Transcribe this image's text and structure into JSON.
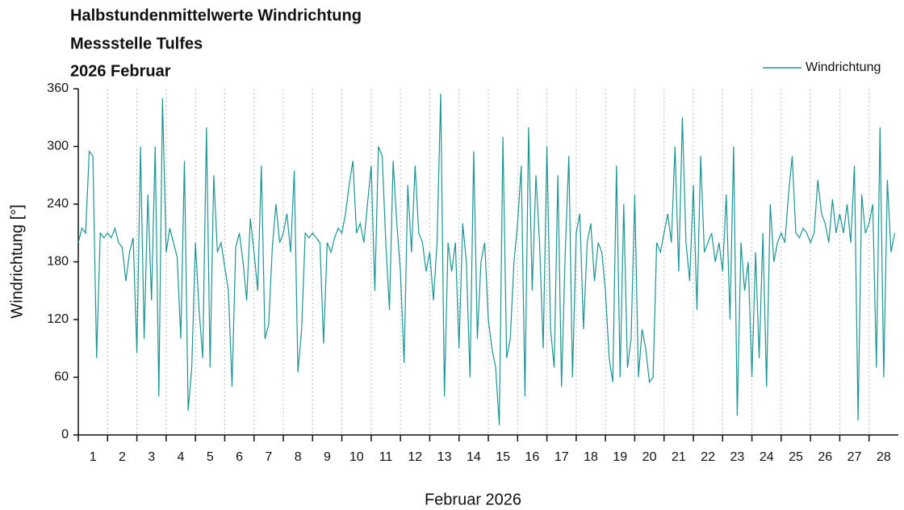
{
  "chart_data": {
    "type": "line",
    "title": [
      "Halbstundenmittelwerte Windrichtung",
      "Messstelle Tulfes",
      "2026 Februar"
    ],
    "xlabel": "Februar 2026",
    "ylabel": "Windrichtung [°]",
    "xlim": [
      1,
      29
    ],
    "xticks": [
      1,
      2,
      3,
      4,
      5,
      6,
      7,
      8,
      9,
      10,
      11,
      12,
      13,
      14,
      15,
      16,
      17,
      18,
      19,
      20,
      21,
      22,
      23,
      24,
      25,
      26,
      27,
      28
    ],
    "ylim": [
      0,
      360
    ],
    "yticks": [
      0,
      60,
      120,
      180,
      240,
      300,
      360
    ],
    "grid": true,
    "legend": "upper right",
    "x": [
      1,
      1.125,
      1.25,
      1.375,
      1.5,
      1.625,
      1.75,
      1.875,
      2,
      2.125,
      2.25,
      2.375,
      2.5,
      2.625,
      2.75,
      2.875,
      3,
      3.125,
      3.25,
      3.375,
      3.5,
      3.625,
      3.75,
      3.875,
      4,
      4.125,
      4.25,
      4.375,
      4.5,
      4.625,
      4.75,
      4.875,
      5,
      5.125,
      5.25,
      5.375,
      5.5,
      5.625,
      5.75,
      5.875,
      6,
      6.125,
      6.25,
      6.375,
      6.5,
      6.625,
      6.75,
      6.875,
      7,
      7.125,
      7.25,
      7.375,
      7.5,
      7.625,
      7.75,
      7.875,
      8,
      8.125,
      8.25,
      8.375,
      8.5,
      8.625,
      8.75,
      8.875,
      9,
      9.125,
      9.25,
      9.375,
      9.5,
      9.625,
      9.75,
      9.875,
      10,
      10.125,
      10.25,
      10.375,
      10.5,
      10.625,
      10.75,
      10.875,
      11,
      11.125,
      11.25,
      11.375,
      11.5,
      11.625,
      11.75,
      11.875,
      12,
      12.125,
      12.25,
      12.375,
      12.5,
      12.625,
      12.75,
      12.875,
      13,
      13.125,
      13.25,
      13.375,
      13.5,
      13.625,
      13.75,
      13.875,
      14,
      14.125,
      14.25,
      14.375,
      14.5,
      14.625,
      14.75,
      14.875,
      15,
      15.125,
      15.25,
      15.375,
      15.5,
      15.625,
      15.75,
      15.875,
      16,
      16.125,
      16.25,
      16.375,
      16.5,
      16.625,
      16.75,
      16.875,
      17,
      17.125,
      17.25,
      17.375,
      17.5,
      17.625,
      17.75,
      17.875,
      18,
      18.125,
      18.25,
      18.375,
      18.5,
      18.625,
      18.75,
      18.875,
      19,
      19.125,
      19.25,
      19.375,
      19.5,
      19.625,
      19.75,
      19.875,
      20,
      20.125,
      20.25,
      20.375,
      20.5,
      20.625,
      20.75,
      20.875,
      21,
      21.125,
      21.25,
      21.375,
      21.5,
      21.625,
      21.75,
      21.875,
      22,
      22.125,
      22.25,
      22.375,
      22.5,
      22.625,
      22.75,
      22.875,
      23,
      23.125,
      23.25,
      23.375,
      23.5,
      23.625,
      23.75,
      23.875,
      24,
      24.125,
      24.25,
      24.375,
      24.5,
      24.625,
      24.75,
      24.875,
      25,
      25.125,
      25.25,
      25.375,
      25.5,
      25.625,
      25.75,
      25.875,
      26,
      26.125,
      26.25,
      26.375,
      26.5,
      26.625,
      26.75,
      26.875,
      27,
      27.125,
      27.25,
      27.375,
      27.5,
      27.625,
      27.75,
      27.875,
      28,
      28.125,
      28.25,
      28.375,
      28.5,
      28.625,
      28.75,
      28.875
    ],
    "series": [
      {
        "name": "Windrichtung",
        "color": "#1a9494",
        "values": [
          200,
          215,
          210,
          295,
          290,
          80,
          210,
          205,
          210,
          205,
          215,
          200,
          195,
          160,
          190,
          205,
          85,
          300,
          100,
          250,
          140,
          300,
          40,
          350,
          190,
          215,
          200,
          185,
          100,
          285,
          25,
          70,
          200,
          130,
          80,
          320,
          70,
          270,
          190,
          200,
          175,
          150,
          50,
          195,
          210,
          180,
          140,
          225,
          190,
          150,
          280,
          100,
          115,
          195,
          240,
          200,
          210,
          230,
          190,
          275,
          65,
          110,
          210,
          205,
          210,
          205,
          200,
          95,
          200,
          190,
          205,
          215,
          210,
          230,
          260,
          285,
          210,
          220,
          200,
          240,
          280,
          150,
          300,
          290,
          200,
          130,
          285,
          220,
          170,
          75,
          260,
          190,
          280,
          210,
          200,
          170,
          190,
          140,
          200,
          355,
          40,
          200,
          170,
          200,
          90,
          220,
          180,
          60,
          295,
          100,
          180,
          200,
          120,
          90,
          70,
          10,
          310,
          80,
          100,
          180,
          220,
          280,
          40,
          320,
          150,
          270,
          200,
          90,
          300,
          110,
          70,
          270,
          50,
          190,
          290,
          60,
          210,
          230,
          110,
          200,
          220,
          160,
          200,
          190,
          150,
          80,
          55,
          280,
          60,
          240,
          70,
          100,
          250,
          60,
          110,
          90,
          55,
          60,
          200,
          190,
          210,
          230,
          200,
          300,
          170,
          330,
          200,
          160,
          260,
          130,
          290,
          190,
          200,
          210,
          180,
          200,
          170,
          250,
          120,
          300,
          20,
          200,
          150,
          180,
          60,
          190,
          80,
          210,
          50,
          240,
          180,
          200,
          210,
          200,
          250,
          290,
          210,
          205,
          215,
          210,
          200,
          210,
          265,
          230,
          220,
          200,
          245,
          210,
          230,
          210,
          240,
          200,
          280,
          15,
          250,
          210,
          220,
          240,
          70,
          320,
          60,
          265,
          190,
          210
        ]
      }
    ]
  }
}
